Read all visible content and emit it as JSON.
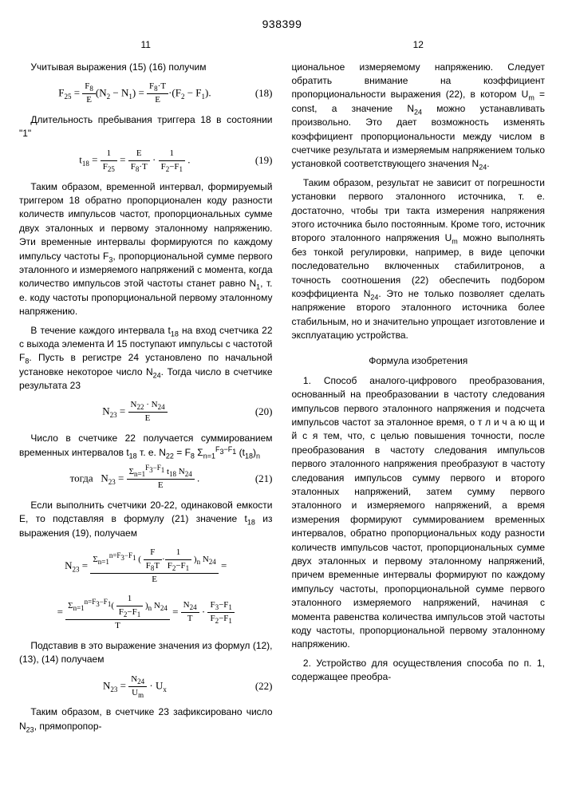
{
  "patent_number": "938399",
  "left_page_num": "11",
  "right_page_num": "12",
  "left": {
    "p1": "Учитывая выражения (15) (16) получим",
    "f18_body": "F<sub>25</sub> = <span class='frac'><span class='num'>F<sub>8</sub></span><span class='den'>E</span></span>(N<sub>2</sub> − N<sub>1</sub>) = <span class='frac'><span class='num'>F<sub>8</sub>·T</span><span class='den'>E</span></span>·(F<sub>2</sub> − F<sub>1</sub>).",
    "f18_num": "(18)",
    "p2": "Длительность пребывания триггера 18 в состоянии \"1\"",
    "f19_body": "t<sub>18</sub> = <span class='frac'><span class='num'>1</span><span class='den'>F<sub>25</sub></span></span> = <span class='frac'><span class='num'>E</span><span class='den'>F<sub>8</sub>·T</span></span> · <span class='frac'><span class='num'>1</span><span class='den'>F<sub>2</sub>−F<sub>1</sub></span></span> .",
    "f19_num": "(19)",
    "p3": "Таким образом, временной интервал, формируемый триггером 18 обратно пропорционален коду разности количеств импульсов частот, пропорциональных сумме двух эталонных и первому эталонному напряжению. Эти временные интервалы формируются по каждому импульсу частоты F<sub>3</sub>, пропорциональной сумме первого эталонного и измеряемого напряжений с момента, когда количество импульсов этой частоты станет равно N<sub>1</sub>, т. е. коду частоты пропорциональной первому эталонному напряжению.",
    "p4": "В течение каждого интервала t<sub>18</sub> на вход счетчика 22 с выхода элемента И 15 поступают импульсы с частотой F<sub>8</sub>. Пусть в регистре 24 установлено по начальной установке некоторое число N<sub>24</sub>. Тогда число в счетчике результата 23",
    "f20_body": "N<sub>23</sub> = <span class='frac'><span class='num'>N<sub>22</sub> · N<sub>24</sub></span><span class='den'>E</span></span>",
    "f20_num": "(20)",
    "p5": "Число в счетчике 22 получается суммированием временных интервалов t<sub>18</sub> т. е. N<sub>22</sub> = F<sub>8</sub> Σ<sub>n=1</sub><sup>F<sub>3</sub>−F<sub>1</sub></sup> (t<sub>18</sub>)<sub>n</sub>",
    "f21_body": "тогда&nbsp;&nbsp; N<sub>23</sub> = <span class='frac'><span class='num'>Σ<sub>n=1</sub><sup>F<sub>3</sub>−F<sub>1</sub></sup> t<sub>18</sub> N<sub>24</sub></span><span class='den'>E</span></span> .",
    "f21_num": "(21)",
    "p6": "Если выполнить счетчики 20-22, одинаковой емкости E, то подставляя в формулу (21) значение t<sub>18</sub> из выражения (19), получаем",
    "f21a_body": "N<sub>23</sub> = <span class='frac'><span class='num'>Σ<sub>n=1</sub><sup>n=F<sub>3</sub>−F<sub>1</sub></sup> ( <span class='frac'><span class='num'>F</span><span class='den'>F<sub>8</sub>T</span></span>·<span class='frac'><span class='num'>1</span><span class='den'>F<sub>2</sub>−F<sub>1</sub></span></span> )<sub>n</sub> N<sub>24</sub></span><span class='den'>E</span></span> =",
    "f21b_body": "= <span class='frac'><span class='num'>Σ<sub>n=1</sub><sup>n=F<sub>3</sub>−F<sub>1</sub></sup>( <span class='frac'><span class='num'>1</span><span class='den'>F<sub>2</sub>−F<sub>1</sub></span></span> )<sub>n</sub> N<sub>24</sub></span><span class='den'>T</span></span> = <span class='frac'><span class='num'>N<sub>24</sub></span><span class='den'>T</span></span> · <span class='frac'><span class='num'>F<sub>3</sub>−F<sub>1</sub></span><span class='den'>F<sub>2</sub>−F<sub>1</sub></span></span>",
    "p7": "Подставив в это выражение значения из формул (12), (13), (14) получаем",
    "f22_body": "N<sub>23</sub> = <span class='frac'><span class='num'>N<sub>24</sub></span><span class='den'>U<sub>m</sub></span></span> · U<sub>x</sub>",
    "f22_num": "(22)",
    "p8": "Таким образом, в счетчике 23 зафиксировано число N<sub>23</sub>, прямопропор-"
  },
  "right": {
    "p1": "циональное измеряемому напряжению. Следует обратить внимание на коэффициент пропорциональности выражения (22), в котором U<sub>m</sub> = const, а значение N<sub>24</sub> можно устанавливать произвольно. Это дает возможность изменять коэффициент пропорциональности между числом в счетчике результата и измеряемым напряжением только установкой соответствующего значения N<sub>24</sub>.",
    "p2": "Таким образом, результат не зависит от погрешности установки первого эталонного источника, т. е. достаточно, чтобы три такта измерения напряжения этого источника было постоянным. Кроме того, источник второго эталонного напряжения U<sub>m</sub> можно выполнять без тонкой регулировки, например, в виде цепочки последовательно включенных стабилитронов, а точность соотношения (22) обеспечить подбором коэффициента N<sub>24</sub>. Это не только позволяет сделать напряжение второго эталонного источника более стабильным, но и значительно упрощает изготовление и эксплуатацию устройства.",
    "section": "Формула изобретения",
    "claim1": "1. Способ аналого-цифрового преобразования, основанный на преобразовании в частоту следования импульсов первого эталонного напряжения и подсчета импульсов частот за эталонное время, о т л и ч а ю щ и й с я тем, что, с целью повышения точности, после преобразования в частоту следования импульсов первого эталонного напряжения преобразуют в частоту следования импульсов сумму первого и второго эталонных напряжений, затем сумму первого эталонного и измеряемого напряжений, а время измерения формируют суммированием временных интервалов, обратно пропорциональных коду разности количеств импульсов частот, пропорциональных сумме двух эталонных и первому эталонному напряжений, причем временные интервалы формируют по каждому импульсу частоты, пропорциональной сумме первого эталонного измеряемого напряжений, начиная с момента равенства количества импульсов этой частоты коду частоты, пропорциональной первому эталонному напряжению.",
    "claim2": "2. Устройство для осуществления способа по п. 1, содержащее преобра-"
  }
}
